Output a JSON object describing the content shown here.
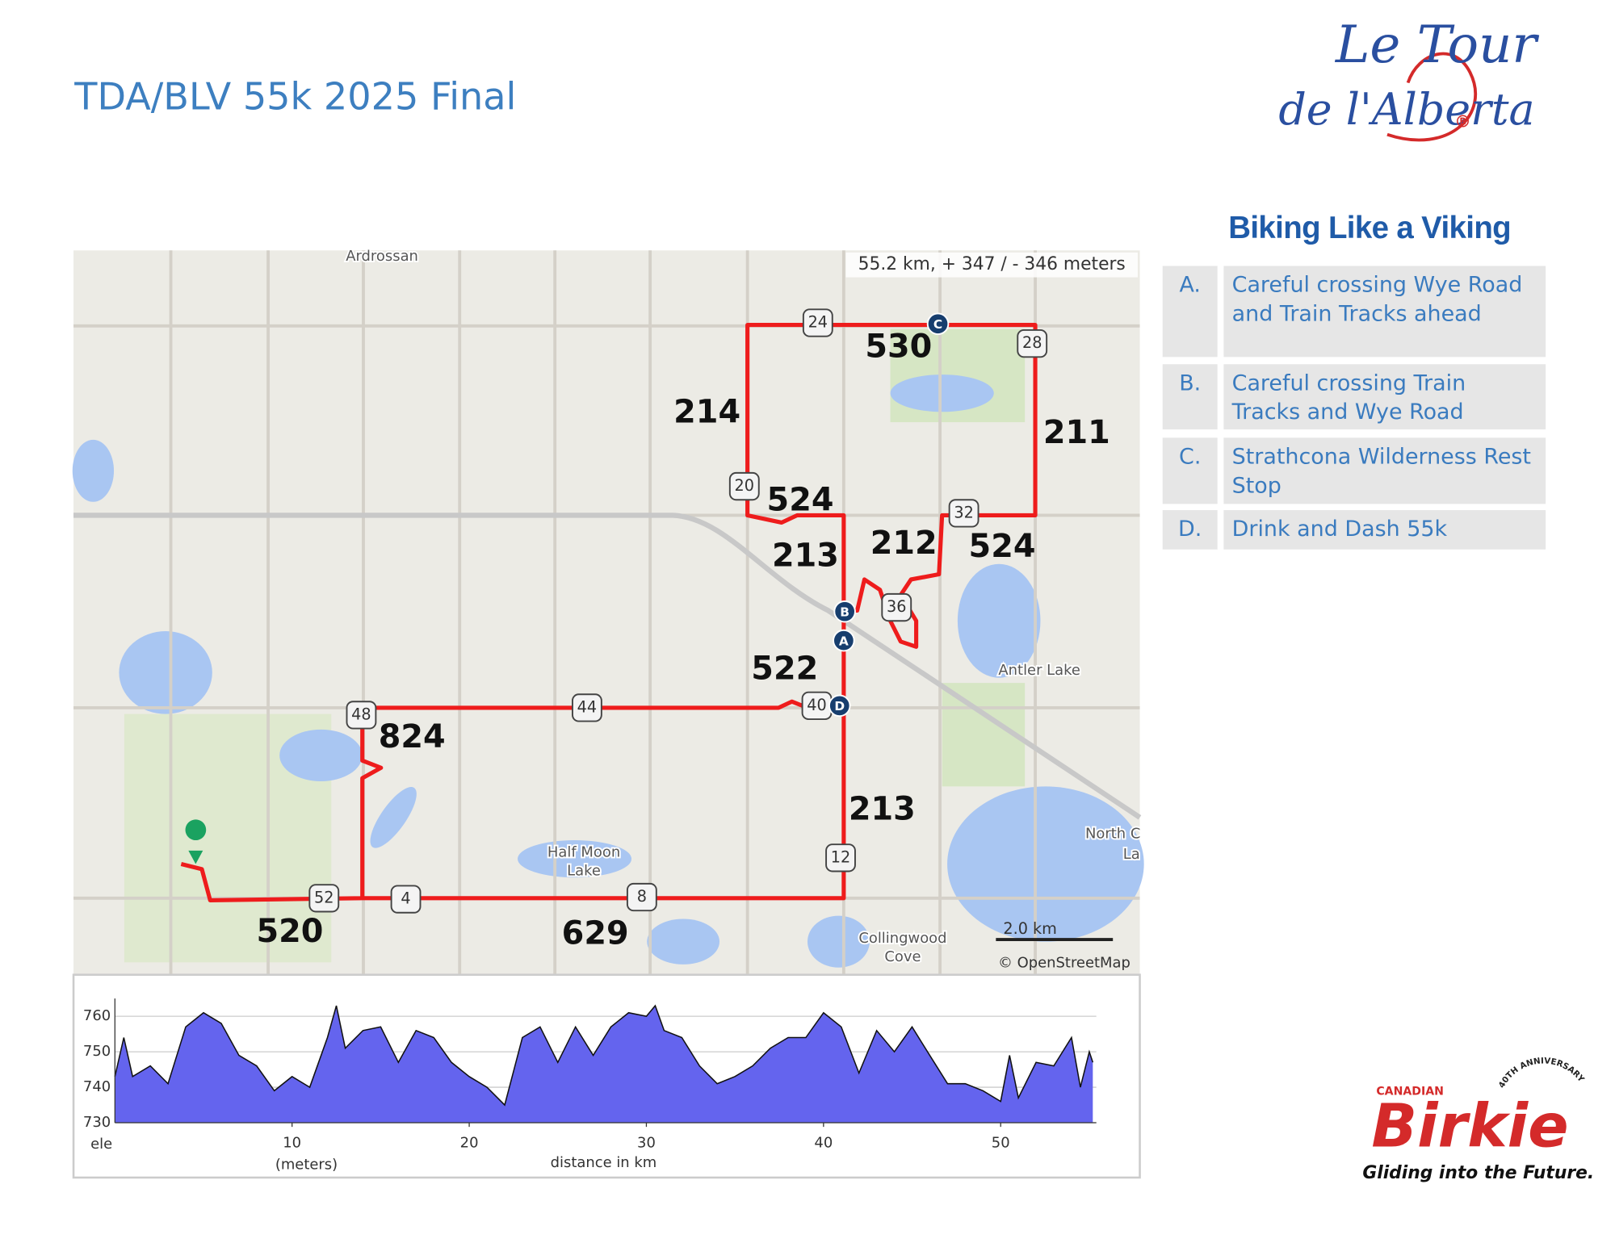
{
  "title": "TDA/BLV 55k 2025 Final",
  "logo_top": {
    "line1": "Le Tour",
    "line2": "de l'Alberta",
    "mark": "®",
    "tagline": "Biking Like a Viking"
  },
  "logo_bottom": {
    "small": "CANADIAN",
    "name": "Birkie",
    "anniversary": "40TH ANNIVERSARY",
    "slogan": "Gliding into the Future."
  },
  "notes": [
    {
      "letter": "A.",
      "text": "Careful crossing Wye Road and Train Tracks ahead"
    },
    {
      "letter": "B.",
      "text": "Careful crossing Train Tracks and Wye Road"
    },
    {
      "letter": "C.",
      "text": "Strathcona Wilderness Rest Stop"
    },
    {
      "letter": "D.",
      "text": "Drink and Dash 55k"
    }
  ],
  "map": {
    "stats": "55.2 km, + 347 / - 346 meters",
    "scale": "2.0 km",
    "attribution": "© OpenStreetMap",
    "places": [
      "Ardrossan",
      "Antler Lake",
      "Half Moon",
      "Lake",
      "Collingwood",
      "Cove",
      "North C",
      "La"
    ],
    "segment_labels": [
      "214",
      "530",
      "211",
      "524",
      "213",
      "212",
      "524",
      "522",
      "824",
      "213",
      "520",
      "629"
    ],
    "road_markers": [
      "24",
      "28",
      "20",
      "32",
      "36",
      "40",
      "44",
      "48",
      "12",
      "52",
      "4",
      "8"
    ],
    "waypoints": [
      "C",
      "B",
      "A",
      "D"
    ]
  },
  "chart_data": {
    "type": "area",
    "color": "#6464ee",
    "grid": true,
    "y_label": "ele",
    "y_units": "(meters)",
    "x_label": "distance in km",
    "x": [
      0,
      0.5,
      1,
      2,
      3,
      4,
      5,
      6,
      7,
      8,
      9,
      10,
      11,
      12,
      12.5,
      13,
      14,
      15,
      16,
      17,
      18,
      19,
      20,
      21,
      22,
      23,
      24,
      25,
      26,
      27,
      28,
      29,
      30,
      30.5,
      31,
      32,
      33,
      34,
      35,
      36,
      37,
      38,
      39,
      40,
      41,
      42,
      43,
      44,
      45,
      46,
      47,
      48,
      49,
      50,
      50.5,
      51,
      52,
      53,
      54,
      54.5,
      55,
      55.2
    ],
    "values": [
      743,
      754,
      743,
      746,
      741,
      757,
      761,
      758,
      749,
      746,
      739,
      743,
      740,
      754,
      763,
      751,
      756,
      757,
      747,
      756,
      754,
      747,
      743,
      740,
      735,
      754,
      757,
      747,
      757,
      749,
      757,
      761,
      760,
      763,
      756,
      754,
      746,
      741,
      743,
      746,
      751,
      754,
      754,
      761,
      757,
      744,
      756,
      750,
      757,
      749,
      741,
      741,
      739,
      736,
      749,
      737,
      747,
      746,
      754,
      740,
      750,
      747
    ],
    "xlim": [
      0,
      55.4
    ],
    "ylim": [
      730,
      765
    ],
    "xticks": [
      10,
      20,
      30,
      40,
      50
    ],
    "yticks": [
      730,
      740,
      750,
      760
    ]
  }
}
